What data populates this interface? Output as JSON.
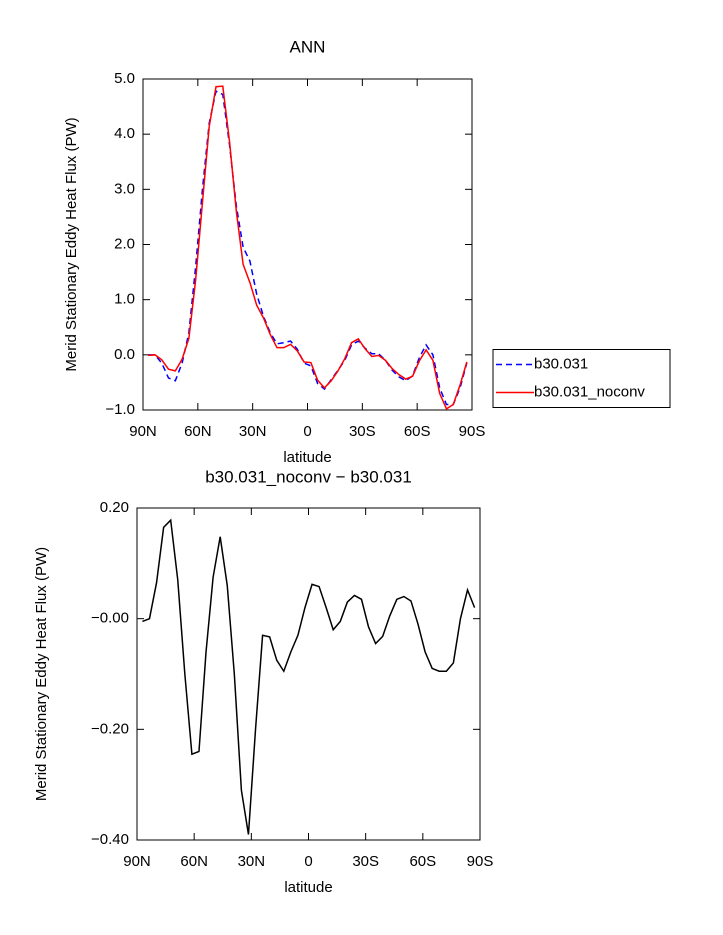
{
  "chart_data": [
    {
      "type": "line",
      "title": "ANN",
      "xlabel": "latitude",
      "ylabel": "Merid Stationary Eddy Heat Flux (PW)",
      "x": [
        87.16,
        83.45,
        79.74,
        76.03,
        72.32,
        68.61,
        64.9,
        61.19,
        57.48,
        53.77,
        50.06,
        46.35,
        42.64,
        38.93,
        35.22,
        31.51,
        27.8,
        24.1,
        20.39,
        16.68,
        12.97,
        9.26,
        5.55,
        1.85,
        -1.85,
        -5.55,
        -9.26,
        -12.97,
        -16.68,
        -20.39,
        -24.1,
        -27.8,
        -31.51,
        -35.22,
        -38.93,
        -42.64,
        -46.35,
        -50.06,
        -53.77,
        -57.48,
        -61.19,
        -64.9,
        -68.61,
        -72.32,
        -76.03,
        -79.74,
        -83.45,
        -87.16
      ],
      "series": [
        {
          "name": "b30.031",
          "color": "#0000ff",
          "linestyle": "dashed",
          "values": [
            0.0,
            0.0,
            -0.15,
            -0.42,
            -0.47,
            -0.15,
            0.4,
            1.6,
            3.0,
            4.2,
            4.78,
            4.72,
            3.8,
            2.7,
            1.95,
            1.7,
            1.1,
            0.7,
            0.4,
            0.2,
            0.22,
            0.25,
            0.1,
            -0.15,
            -0.2,
            -0.52,
            -0.62,
            -0.45,
            -0.28,
            -0.1,
            0.18,
            0.25,
            0.12,
            0.02,
            0.02,
            -0.1,
            -0.28,
            -0.4,
            -0.47,
            -0.38,
            -0.05,
            0.18,
            0.0,
            -0.6,
            -0.9,
            -0.9,
            -0.6,
            -0.15
          ]
        },
        {
          "name": "b30.031_noconv",
          "color": "#ff0000",
          "linestyle": "solid",
          "values": [
            -0.01,
            0.0,
            -0.09,
            -0.26,
            -0.29,
            -0.08,
            0.3,
            1.36,
            2.76,
            4.14,
            4.86,
            4.87,
            3.86,
            2.6,
            1.64,
            1.31,
            0.9,
            0.67,
            0.37,
            0.13,
            0.13,
            0.19,
            0.07,
            -0.13,
            -0.14,
            -0.46,
            -0.6,
            -0.47,
            -0.29,
            -0.07,
            0.22,
            0.29,
            0.11,
            -0.03,
            -0.01,
            -0.1,
            -0.25,
            -0.36,
            -0.44,
            -0.39,
            -0.11,
            0.09,
            -0.1,
            -0.7,
            -0.98,
            -0.9,
            -0.55,
            -0.13
          ]
        }
      ],
      "xlim": [
        90,
        -90
      ],
      "xticks": [
        {
          "value": 90,
          "label": "90N"
        },
        {
          "value": 60,
          "label": "60N"
        },
        {
          "value": 30,
          "label": "30N"
        },
        0,
        {
          "value": -30,
          "label": "30S"
        },
        {
          "value": -60,
          "label": "60S"
        },
        {
          "value": -90,
          "label": "90S"
        }
      ],
      "ylim": [
        -1,
        5
      ],
      "yticks": [
        {
          "value": -1,
          "label": "−1.0"
        },
        {
          "value": 0,
          "label": "0.0"
        },
        {
          "value": 1,
          "label": "1.0"
        },
        {
          "value": 2,
          "label": "2.0"
        },
        {
          "value": 3,
          "label": "3.0"
        },
        {
          "value": 4,
          "label": "4.0"
        },
        {
          "value": 5,
          "label": "5.0"
        }
      ],
      "legend": "right"
    },
    {
      "type": "line",
      "title": "b30.031_noconv − b30.031",
      "xlabel": "latitude",
      "ylabel": "Merid Stationary Eddy Heat Flux (PW)",
      "x": [
        87.16,
        83.45,
        79.74,
        76.03,
        72.32,
        68.61,
        64.9,
        61.19,
        57.48,
        53.77,
        50.06,
        46.35,
        42.64,
        38.93,
        35.22,
        31.51,
        27.8,
        24.1,
        20.39,
        16.68,
        12.97,
        9.26,
        5.55,
        1.85,
        -1.85,
        -5.55,
        -9.26,
        -12.97,
        -16.68,
        -20.39,
        -24.1,
        -27.8,
        -31.51,
        -35.22,
        -38.93,
        -42.64,
        -46.35,
        -50.06,
        -53.77,
        -57.48,
        -61.19,
        -64.9,
        -68.61,
        -72.32,
        -76.03,
        -79.74,
        -83.45,
        -87.16
      ],
      "color": "#000000",
      "values": [
        -0.005,
        0.0,
        0.065,
        0.165,
        0.178,
        0.07,
        -0.1,
        -0.245,
        -0.24,
        -0.06,
        0.075,
        0.148,
        0.06,
        -0.1,
        -0.31,
        -0.39,
        -0.2,
        -0.03,
        -0.033,
        -0.075,
        -0.095,
        -0.06,
        -0.03,
        0.02,
        0.062,
        0.058,
        0.02,
        -0.02,
        -0.005,
        0.03,
        0.042,
        0.035,
        -0.015,
        -0.045,
        -0.032,
        0.005,
        0.035,
        0.04,
        0.032,
        -0.01,
        -0.06,
        -0.09,
        -0.095,
        -0.095,
        -0.08,
        0.0,
        0.052,
        0.02
      ],
      "xlim": [
        90,
        -90
      ],
      "xticks": [
        {
          "value": 90,
          "label": "90N"
        },
        {
          "value": 60,
          "label": "60N"
        },
        {
          "value": 30,
          "label": "30N"
        },
        0,
        {
          "value": -30,
          "label": "30S"
        },
        {
          "value": -60,
          "label": "60S"
        },
        {
          "value": -90,
          "label": "90S"
        }
      ],
      "ylim": [
        -0.4,
        0.2
      ],
      "yticks": [
        {
          "value": -0.4,
          "label": "−0.40"
        },
        {
          "value": -0.2,
          "label": "−0.20"
        },
        {
          "value": 0,
          "label": "−0.00"
        },
        {
          "value": 0.2,
          "label": "0.20"
        }
      ]
    }
  ]
}
